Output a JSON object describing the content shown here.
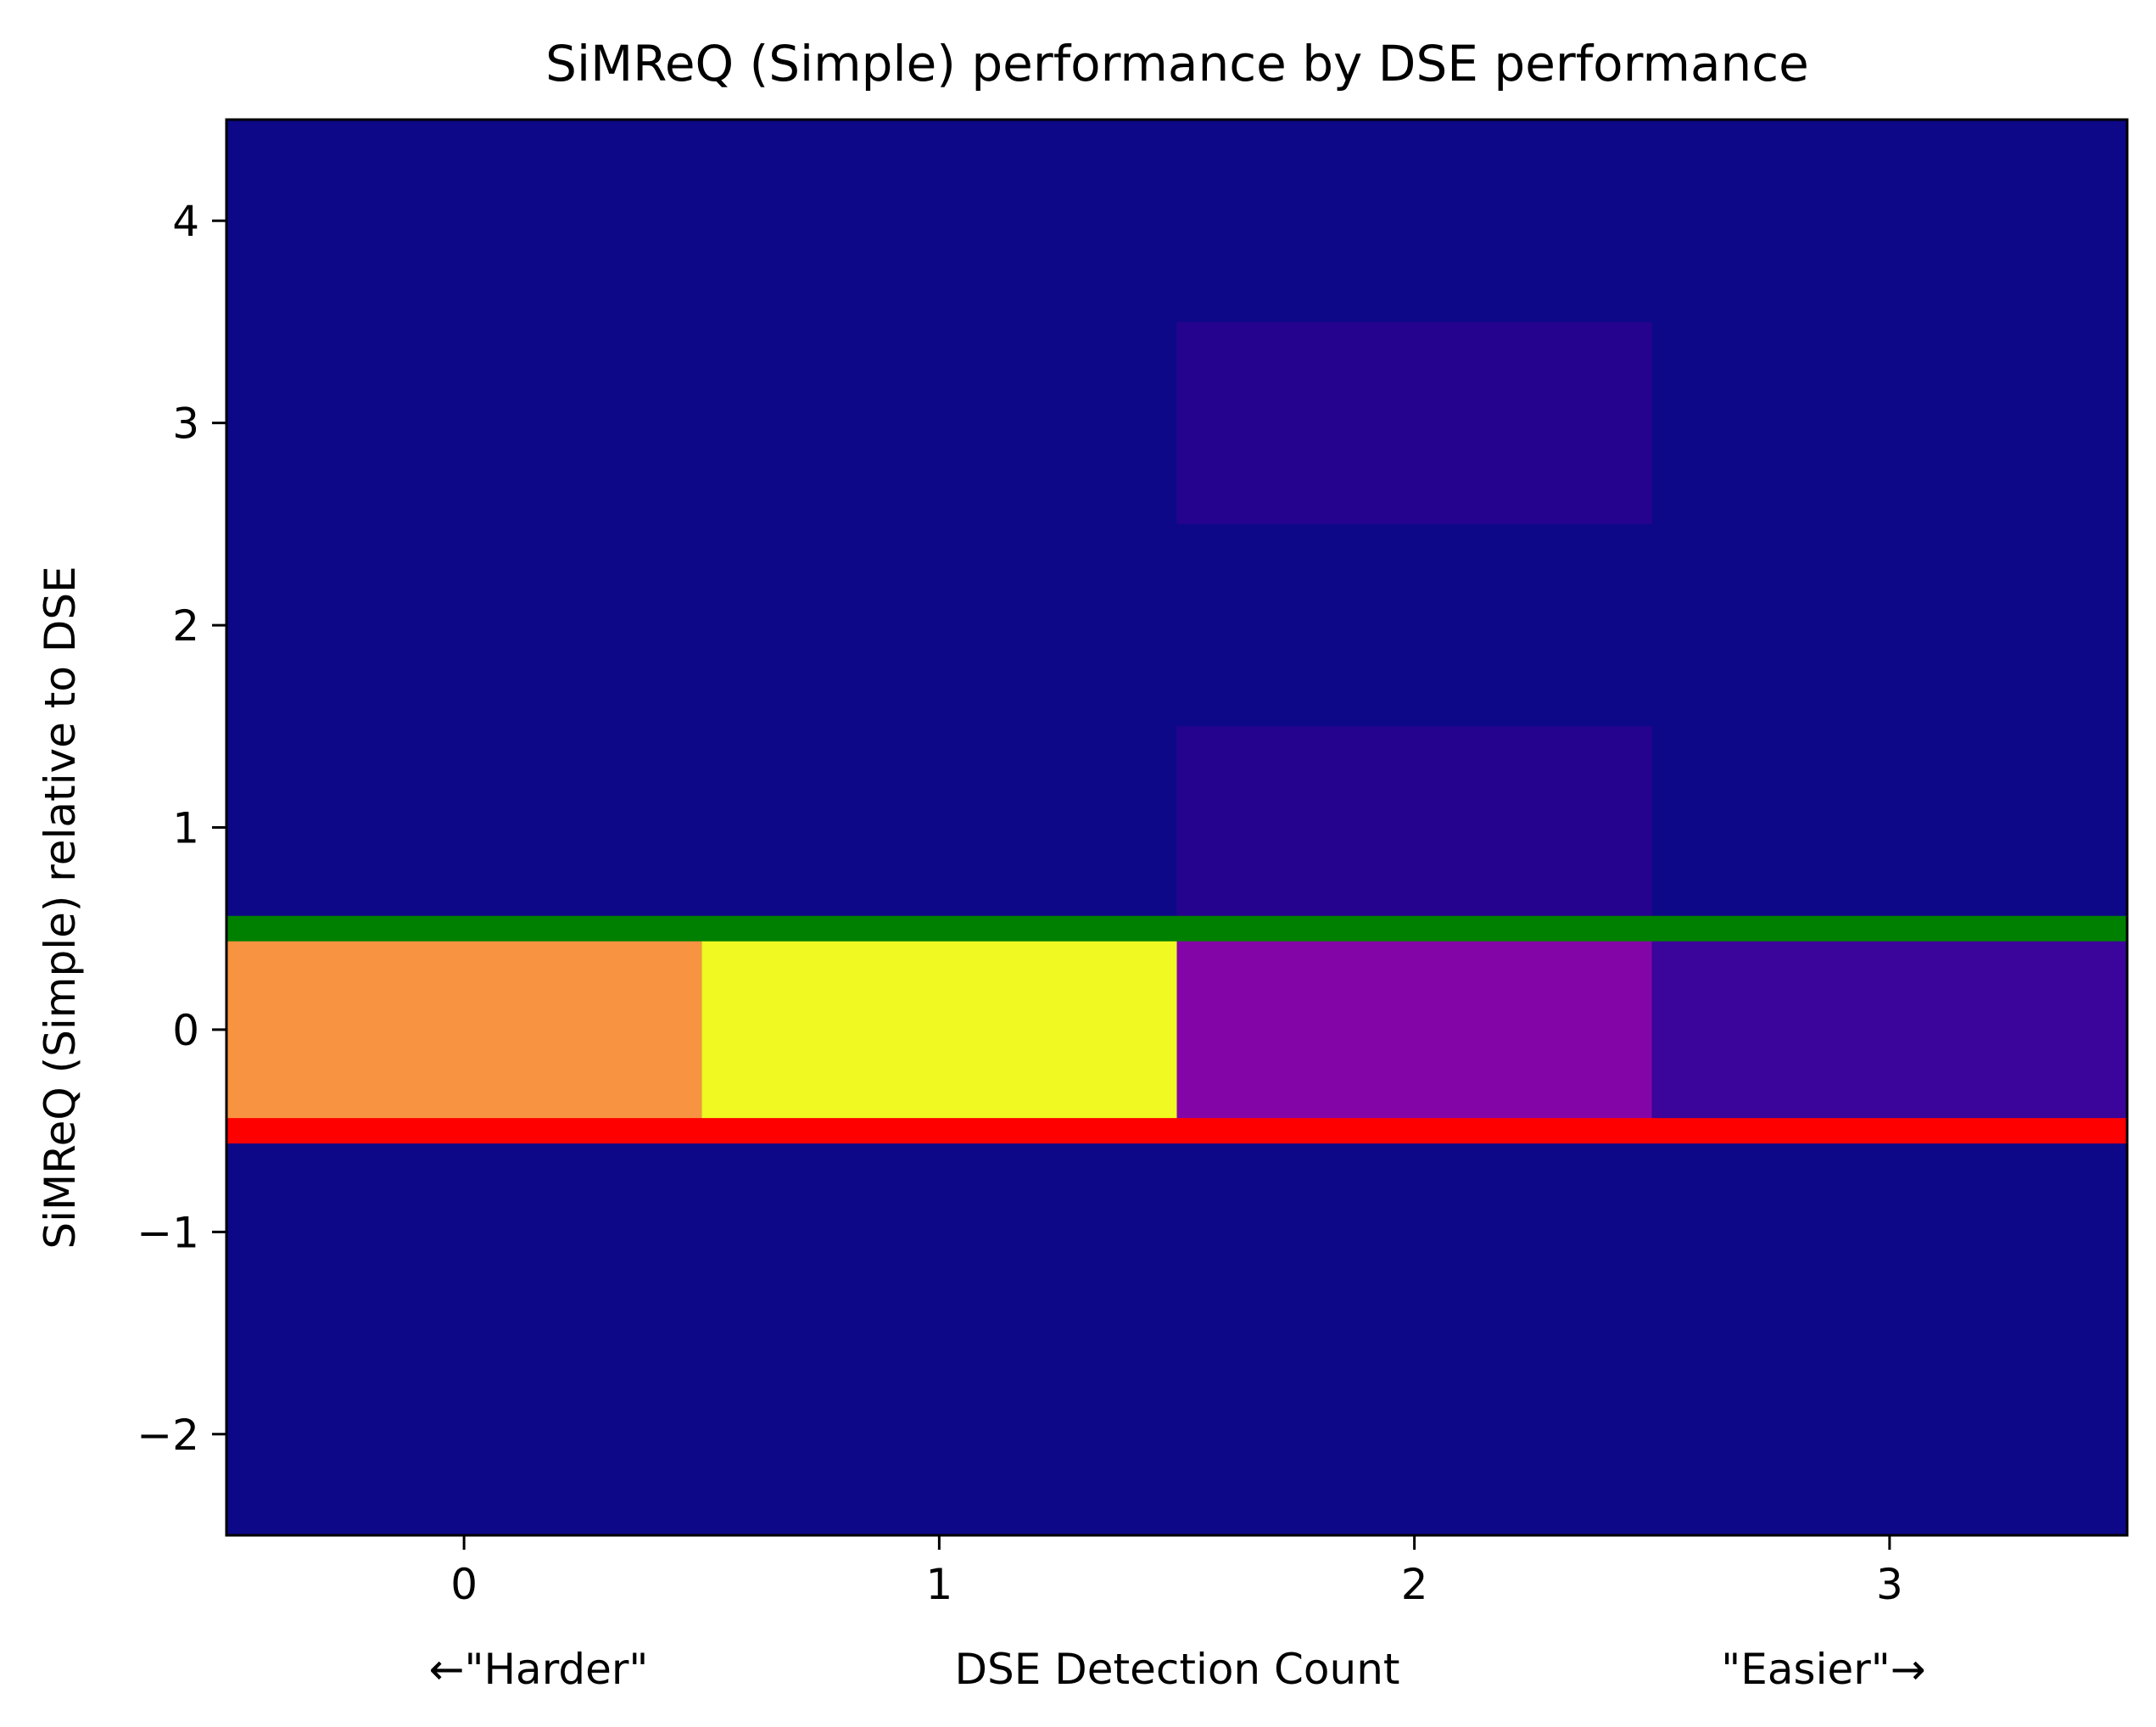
{
  "chart_data": {
    "type": "heatmap",
    "title": "SiMReQ (Simple) performance by DSE performance",
    "xlabel": "DSE Detection Count",
    "xlabel_left": "←\"Harder\"",
    "xlabel_right": "\"Easier\"→",
    "ylabel": "SiMReQ (Simple) relative to DSE",
    "x_ticks": [
      0,
      1,
      2,
      3
    ],
    "y_ticks": [
      -2,
      -1,
      0,
      1,
      2,
      3,
      4
    ],
    "xlim": [
      -0.5,
      3.5
    ],
    "ylim": [
      -2.5,
      4.5
    ],
    "colormap": "plasma",
    "background_color": "#0d0887",
    "cells": [
      {
        "x": 0,
        "y": 0,
        "value": 0.7,
        "color": "#f89441"
      },
      {
        "x": 1,
        "y": 0,
        "value": 1.0,
        "color": "#f0f921"
      },
      {
        "x": 2,
        "y": 0,
        "value": 0.3,
        "color": "#8405a7"
      },
      {
        "x": 3,
        "y": 0,
        "value": 0.1,
        "color": "#3b049a"
      },
      {
        "x": 2,
        "y": 1,
        "value": 0.03,
        "color": "#25038e"
      },
      {
        "x": 2,
        "y": 3,
        "value": 0.03,
        "color": "#25038e"
      }
    ],
    "reference_lines": [
      {
        "y": 0.5,
        "color": "#008000"
      },
      {
        "y": -0.5,
        "color": "#ff0000"
      }
    ],
    "grid": false,
    "legend": "none"
  }
}
